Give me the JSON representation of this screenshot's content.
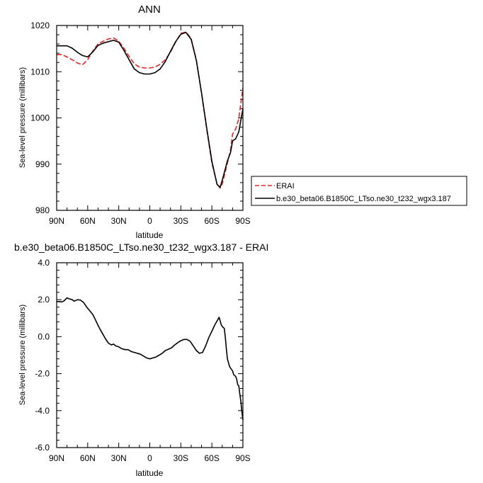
{
  "chart_data": [
    {
      "type": "line",
      "title": "ANN",
      "xlabel": "latitude",
      "ylabel": "Sea-level pressure (millibars)",
      "xlim": [
        90,
        -90
      ],
      "ylim": [
        980,
        1020
      ],
      "xticks": [
        90,
        60,
        30,
        0,
        -30,
        -60,
        -90
      ],
      "xtick_labels": [
        "90N",
        "60N",
        "30N",
        "0",
        "30S",
        "60S",
        "90S"
      ],
      "yticks": [
        980,
        990,
        1000,
        1010,
        1020
      ],
      "ytick_labels": [
        "980",
        "990",
        "1000",
        "1010",
        "1020"
      ],
      "grid": false,
      "legend_position": "right, outside plot",
      "series": [
        {
          "name": "ERAI",
          "color": "#ee2222",
          "dash": "dashed",
          "x": [
            90,
            85,
            80,
            75,
            70,
            65,
            60,
            55,
            50,
            45,
            40,
            35,
            30,
            25,
            20,
            15,
            10,
            5,
            0,
            -5,
            -10,
            -15,
            -20,
            -25,
            -30,
            -35,
            -40,
            -45,
            -50,
            -55,
            -60,
            -65,
            -68,
            -70,
            -75,
            -78,
            -80,
            -83,
            -86,
            -88,
            -90
          ],
          "y": [
            1013.7,
            1013.7,
            1013.2,
            1012.6,
            1011.9,
            1011.5,
            1012.6,
            1014.5,
            1016.0,
            1016.6,
            1017.1,
            1017.3,
            1016.6,
            1015.1,
            1013.3,
            1011.7,
            1011.0,
            1010.8,
            1010.8,
            1011.0,
            1011.6,
            1012.6,
            1014.2,
            1016.4,
            1018.3,
            1018.6,
            1017.2,
            1012.5,
            1005.3,
            997.5,
            990.2,
            985.7,
            984.8,
            985.7,
            990.2,
            993.0,
            996.5,
            997.6,
            999.8,
            1003.2,
            1006.5
          ]
        },
        {
          "name": "b.e30_beta06.B1850C_LTso.ne30_t232_wgx3.187",
          "color": "#000000",
          "dash": "solid",
          "x": [
            90,
            85,
            80,
            75,
            70,
            65,
            60,
            55,
            50,
            45,
            40,
            35,
            30,
            25,
            20,
            15,
            10,
            5,
            0,
            -5,
            -10,
            -15,
            -20,
            -25,
            -30,
            -35,
            -40,
            -45,
            -50,
            -55,
            -60,
            -65,
            -68,
            -70,
            -75,
            -78,
            -80,
            -83,
            -86,
            -88,
            -90
          ],
          "y": [
            1015.6,
            1015.6,
            1015.6,
            1015.1,
            1014.2,
            1013.5,
            1013.2,
            1014.3,
            1015.7,
            1016.2,
            1016.5,
            1016.8,
            1016.4,
            1014.6,
            1012.6,
            1010.6,
            1009.8,
            1009.5,
            1009.5,
            1009.8,
            1010.6,
            1012.2,
            1014.4,
            1016.5,
            1018.1,
            1018.5,
            1017.0,
            1012.4,
            1005.4,
            997.8,
            990.6,
            985.6,
            985.0,
            986.5,
            990.7,
            992.5,
            995.0,
            995.5,
            997.0,
            999.5,
            1002.0
          ]
        }
      ]
    },
    {
      "type": "line",
      "title": "b.e30_beta06.B1850C_LTso.ne30_t232_wgx3.187 - ERAI",
      "xlabel": "latitude",
      "ylabel": "Sea-level pressure (millibars)",
      "xlim": [
        90,
        -90
      ],
      "ylim": [
        -6,
        4
      ],
      "xticks": [
        90,
        60,
        30,
        0,
        -30,
        -60,
        -90
      ],
      "xtick_labels": [
        "90N",
        "60N",
        "30N",
        "0",
        "30S",
        "60S",
        "90S"
      ],
      "yticks": [
        -6,
        -4,
        -2,
        0,
        2,
        4
      ],
      "ytick_labels": [
        "-6.0",
        "-4.0",
        "-2.0",
        "0.0",
        "2.0",
        "4.0"
      ],
      "grid": false,
      "series": [
        {
          "color": "#000000",
          "dash": "solid",
          "x": [
            90,
            88,
            85,
            83,
            80,
            78,
            75,
            73,
            70,
            67,
            64,
            61,
            58,
            55,
            52,
            49,
            46,
            43,
            40,
            37,
            35,
            33,
            30,
            27,
            24,
            21,
            18,
            15,
            12,
            9,
            6,
            3,
            0,
            -3,
            -6,
            -9,
            -12,
            -15,
            -18,
            -21,
            -24,
            -27,
            -30,
            -33,
            -36,
            -39,
            -42,
            -45,
            -48,
            -51,
            -54,
            -57,
            -60,
            -63,
            -65,
            -67,
            -68,
            -69,
            -70,
            -72,
            -73,
            -74,
            -75,
            -77,
            -78,
            -80,
            -81,
            -82,
            -83,
            -84,
            -85,
            -86,
            -87,
            -88,
            -89,
            -90
          ],
          "y": [
            1.9,
            1.9,
            1.88,
            1.93,
            2.1,
            2.05,
            2.0,
            1.92,
            2.0,
            1.98,
            1.85,
            1.6,
            1.4,
            1.2,
            0.85,
            0.5,
            0.2,
            -0.1,
            -0.35,
            -0.45,
            -0.4,
            -0.5,
            -0.55,
            -0.65,
            -0.7,
            -0.7,
            -0.8,
            -0.85,
            -0.9,
            -0.95,
            -1.05,
            -1.15,
            -1.2,
            -1.15,
            -1.1,
            -1.0,
            -0.9,
            -0.75,
            -0.68,
            -0.6,
            -0.45,
            -0.32,
            -0.22,
            -0.15,
            -0.15,
            -0.25,
            -0.5,
            -0.75,
            -0.9,
            -0.85,
            -0.5,
            -0.05,
            0.3,
            0.65,
            0.85,
            1.05,
            0.85,
            0.65,
            0.55,
            0.45,
            -0.05,
            -0.65,
            -1.2,
            -1.6,
            -1.7,
            -1.85,
            -2.05,
            -2.1,
            -2.15,
            -2.3,
            -2.6,
            -2.65,
            -3.1,
            -3.5,
            -4.05,
            -4.5
          ]
        }
      ]
    }
  ]
}
